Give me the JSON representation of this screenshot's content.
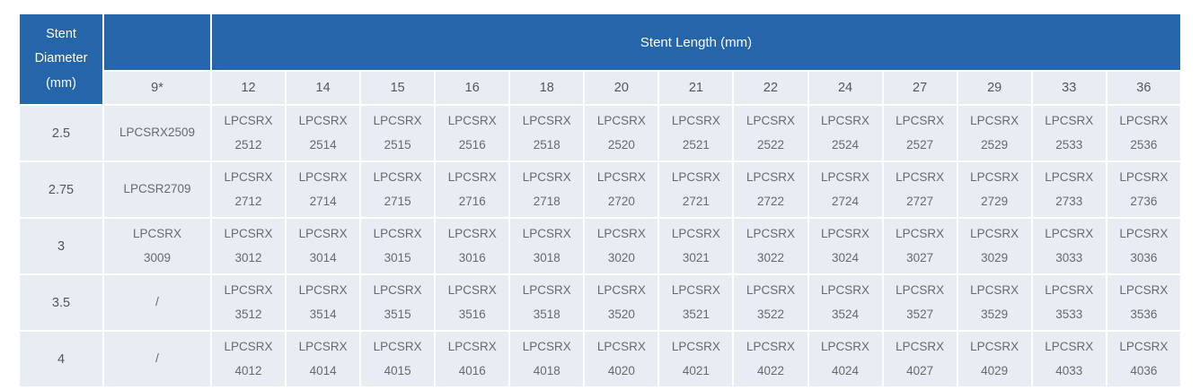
{
  "colors": {
    "header_blue": "#2565a9",
    "cell_background": "#e8edf4",
    "header_text": "#ffffff",
    "label_text": "#55565a",
    "code_text": "#68696d"
  },
  "header": {
    "diameter_label": "Stent\nDiameter\n(mm)",
    "length_label": "Stent Length (mm)",
    "first_length_col": "9*",
    "length_cols": [
      "12",
      "14",
      "15",
      "16",
      "18",
      "20",
      "21",
      "22",
      "24",
      "27",
      "29",
      "33",
      "36"
    ]
  },
  "rows": [
    {
      "diameter": "2.5",
      "cells": [
        "LPCSRX2509",
        "LPCSRX\n2512",
        "LPCSRX\n2514",
        "LPCSRX\n2515",
        "LPCSRX\n2516",
        "LPCSRX\n2518",
        "LPCSRX\n2520",
        "LPCSRX\n2521",
        "LPCSRX\n2522",
        "LPCSRX\n2524",
        "LPCSRX\n2527",
        "LPCSRX\n2529",
        "LPCSRX\n2533",
        "LPCSRX\n2536"
      ]
    },
    {
      "diameter": "2.75",
      "cells": [
        "LPCSR2709",
        "LPCSRX\n2712",
        "LPCSRX\n2714",
        "LPCSRX\n2715",
        "LPCSRX\n2716",
        "LPCSRX\n2718",
        "LPCSRX\n2720",
        "LPCSRX\n2721",
        "LPCSRX\n2722",
        "LPCSRX\n2724",
        "LPCSRX\n2727",
        "LPCSRX\n2729",
        "LPCSRX\n2733",
        "LPCSRX\n2736"
      ]
    },
    {
      "diameter": "3",
      "cells": [
        "LPCSRX\n3009",
        "LPCSRX\n3012",
        "LPCSRX\n3014",
        "LPCSRX\n3015",
        "LPCSRX\n3016",
        "LPCSRX\n3018",
        "LPCSRX\n3020",
        "LPCSRX\n3021",
        "LPCSRX\n3022",
        "LPCSRX\n3024",
        "LPCSRX\n3027",
        "LPCSRX\n3029",
        "LPCSRX\n3033",
        "LPCSRX\n3036"
      ]
    },
    {
      "diameter": "3.5",
      "cells": [
        "/",
        "LPCSRX\n3512",
        "LPCSRX\n3514",
        "LPCSRX\n3515",
        "LPCSRX\n3516",
        "LPCSRX\n3518",
        "LPCSRX\n3520",
        "LPCSRX\n3521",
        "LPCSRX\n3522",
        "LPCSRX\n3524",
        "LPCSRX\n3527",
        "LPCSRX\n3529",
        "LPCSRX\n3533",
        "LPCSRX\n3536"
      ]
    },
    {
      "diameter": "4",
      "cells": [
        "/",
        "LPCSRX\n4012",
        "LPCSRX\n4014",
        "LPCSRX\n4015",
        "LPCSRX\n4016",
        "LPCSRX\n4018",
        "LPCSRX\n4020",
        "LPCSRX\n4021",
        "LPCSRX\n4022",
        "LPCSRX\n4024",
        "LPCSRX\n4027",
        "LPCSRX\n4029",
        "LPCSRX\n4033",
        "LPCSRX\n4036"
      ]
    }
  ]
}
